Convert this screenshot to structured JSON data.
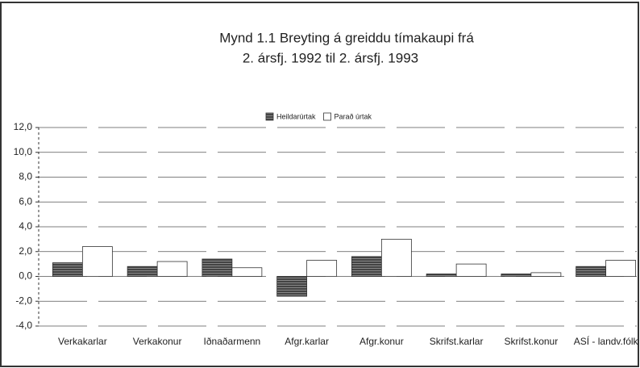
{
  "chart_data": {
    "type": "bar",
    "title": [
      "Mynd 1.1   Breyting á greiddu tímakaupi frá",
      "2. ársfj. 1992 til 2. ársfj. 1993"
    ],
    "categories": [
      "Verkakarlar",
      "Verkakonur",
      "Iðnaðarmenn",
      "Afgr.karlar",
      "Afgr.konur",
      "Skrifst.karlar",
      "Skrifst.konur",
      "ASÍ - landv.fólk"
    ],
    "series": [
      {
        "name": "Heildarúrtak",
        "color": "#333333",
        "values": [
          1.1,
          0.8,
          1.4,
          -1.6,
          1.6,
          0.2,
          0.2,
          0.8
        ]
      },
      {
        "name": "Parað úrtak",
        "color": "#ffffff",
        "values": [
          2.4,
          1.2,
          0.7,
          1.3,
          3.0,
          1.0,
          0.3,
          1.3
        ]
      }
    ],
    "ylim": [
      -4,
      12
    ],
    "yticks": [
      {
        "value": -4,
        "label": "-4,0"
      },
      {
        "value": -2,
        "label": "-2,0"
      },
      {
        "value": 0,
        "label": "0,0"
      },
      {
        "value": 2,
        "label": "2,0"
      },
      {
        "value": 4,
        "label": "4,0"
      },
      {
        "value": 6,
        "label": "6,0"
      },
      {
        "value": 8,
        "label": "8,0"
      },
      {
        "value": 10,
        "label": "10,0"
      },
      {
        "value": 12,
        "label": "12,0"
      }
    ],
    "grid": true
  }
}
